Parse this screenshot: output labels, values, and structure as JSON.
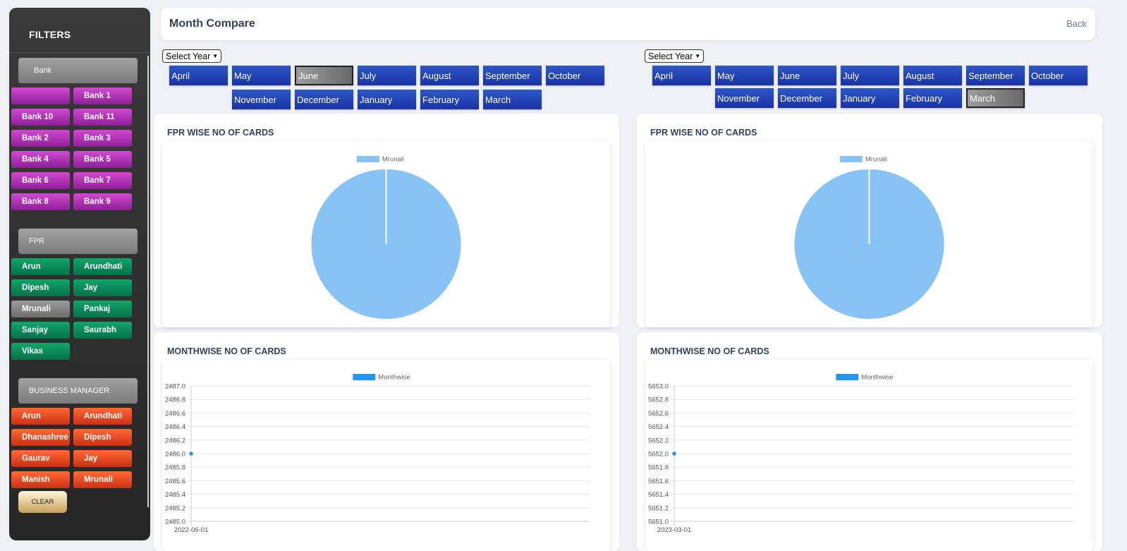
{
  "sidebar": {
    "title": "FILTERS",
    "bank": {
      "header": "Bank",
      "items": [
        "",
        "Bank 1",
        "Bank 10",
        "Bank 11",
        "Bank 2",
        "Bank 3",
        "Bank 4",
        "Bank 5",
        "Bank 6",
        "Bank 7",
        "Bank 8",
        "Bank 9"
      ]
    },
    "fpr": {
      "header": "FPR",
      "items": [
        "Arun",
        "Arundhati",
        "Dipesh",
        "Jay",
        "Mrunali",
        "Pankaj",
        "Sanjay",
        "Saurabh",
        "Vikas"
      ],
      "selected": "Mrunali"
    },
    "business_manager": {
      "header": "BUSINESS MANAGER",
      "items": [
        "Arun",
        "Arundhati",
        "Dhanashree",
        "Dipesh",
        "Gaurav",
        "Jay",
        "Manish",
        "Mrunali"
      ]
    },
    "clear_label": "CLEAR"
  },
  "header": {
    "title": "Month Compare",
    "back_label": "Back"
  },
  "left": {
    "year_select": "Select Year",
    "months_row1": [
      "April",
      "May",
      "June",
      "July",
      "August",
      "September",
      "October"
    ],
    "months_row2": [
      "November",
      "December",
      "January",
      "February",
      "March"
    ],
    "active_month": "June"
  },
  "right": {
    "year_select": "Select Year",
    "months_row1": [
      "April",
      "May",
      "June",
      "July",
      "August",
      "September",
      "October"
    ],
    "months_row2": [
      "November",
      "December",
      "January",
      "February",
      "March"
    ],
    "active_month": "March"
  },
  "panels": {
    "fpr_title": "FPR WISE NO OF CARDS",
    "month_title": "MONTHWISE NO OF CARDS"
  },
  "colors": {
    "pie": "#88c3f5",
    "line": "#2196f3",
    "month_btn": "#1f3fb3",
    "active_month": "#8a8a8a"
  },
  "chart_data": [
    {
      "type": "pie",
      "legend": [
        "Mrunali"
      ],
      "labels": [
        "Mrunali"
      ],
      "values": [
        1
      ],
      "legend_position": "top"
    },
    {
      "type": "pie",
      "legend": [
        "Mrunali"
      ],
      "labels": [
        "Mrunali"
      ],
      "values": [
        1
      ],
      "legend_position": "top"
    },
    {
      "type": "line",
      "series": [
        {
          "name": "Monthwise",
          "x": [
            "2022-06-01"
          ],
          "values": [
            2486.0
          ]
        }
      ],
      "ylim": [
        2485.0,
        2487.0
      ],
      "yticks": [
        "2487.0",
        "2486.8",
        "2486.6",
        "2486.4",
        "2486.2",
        "2486.0",
        "2485.8",
        "2485.6",
        "2485.4",
        "2485.2",
        "2485.0"
      ],
      "xticks": [
        "2022-06-01"
      ],
      "grid": true,
      "legend_position": "top"
    },
    {
      "type": "line",
      "series": [
        {
          "name": "Monthwise",
          "x": [
            "2023-03-01"
          ],
          "values": [
            5652.0
          ]
        }
      ],
      "ylim": [
        5651.0,
        5653.0
      ],
      "yticks": [
        "5653.0",
        "5652.8",
        "5652.6",
        "5652.4",
        "5652.2",
        "5652.0",
        "5651.8",
        "5651.6",
        "5651.4",
        "5651.2",
        "5651.0"
      ],
      "xticks": [
        "2023-03-01"
      ],
      "grid": true,
      "legend_position": "top"
    }
  ]
}
